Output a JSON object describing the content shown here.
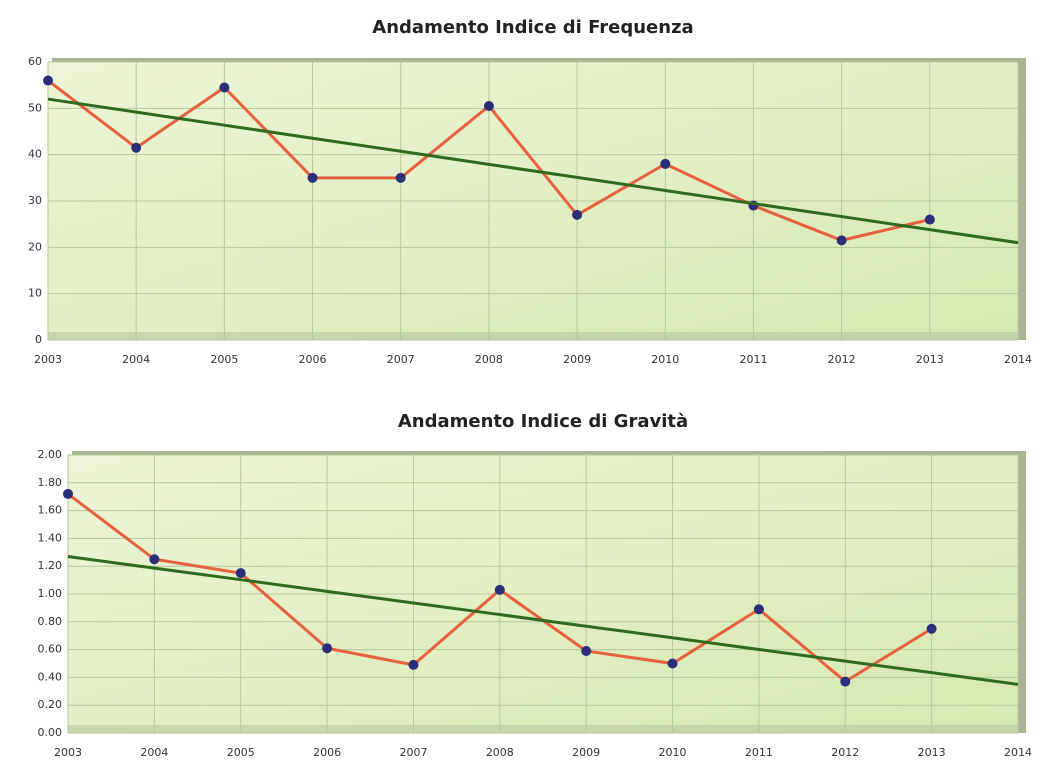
{
  "chart_data": [
    {
      "type": "line",
      "title": "Andamento Indice di Frequenza",
      "x": [
        2003,
        2004,
        2005,
        2006,
        2007,
        2008,
        2009,
        2010,
        2011,
        2012,
        2013,
        2014
      ],
      "series": [
        {
          "color": "#e8603c",
          "marker_color": "#2b2f7a",
          "values": [
            56,
            41.5,
            54.5,
            35,
            35,
            50.5,
            27,
            38,
            29,
            21.5,
            26,
            null
          ]
        },
        {
          "color": "#2f6a1e",
          "values": [
            52,
            49.18,
            46.36,
            43.55,
            40.73,
            37.91,
            35.09,
            32.27,
            29.45,
            26.64,
            23.82,
            21
          ]
        }
      ],
      "xlim": [
        2003,
        2014
      ],
      "xticks": [
        2003,
        2004,
        2005,
        2006,
        2007,
        2008,
        2009,
        2010,
        2011,
        2012,
        2013,
        2014
      ],
      "ylim": [
        0,
        60
      ],
      "yticks": [
        0,
        10,
        20,
        30,
        40,
        50,
        60
      ],
      "grid": true
    },
    {
      "type": "line",
      "title": "Andamento Indice di Gravità",
      "x": [
        2003,
        2004,
        2005,
        2006,
        2007,
        2008,
        2009,
        2010,
        2011,
        2012,
        2013,
        2014
      ],
      "series": [
        {
          "color": "#e8603c",
          "marker_color": "#2b2f7a",
          "values": [
            1.72,
            1.25,
            1.15,
            0.61,
            0.49,
            1.03,
            0.59,
            0.5,
            0.89,
            0.37,
            0.75,
            null
          ]
        },
        {
          "color": "#2f6a1e",
          "values": [
            1.27,
            1.186,
            1.103,
            1.019,
            0.935,
            0.852,
            0.768,
            0.685,
            0.601,
            0.517,
            0.434,
            0.35
          ]
        }
      ],
      "xlim": [
        2003,
        2014
      ],
      "xticks": [
        2003,
        2004,
        2005,
        2006,
        2007,
        2008,
        2009,
        2010,
        2011,
        2012,
        2013,
        2014
      ],
      "ylim": [
        0,
        2
      ],
      "yticks": [
        {
          "value": 0,
          "label": "0.00"
        },
        {
          "value": 0.2,
          "label": "0.20"
        },
        {
          "value": 0.4,
          "label": "0.40"
        },
        {
          "value": 0.6,
          "label": "0.60"
        },
        {
          "value": 0.8,
          "label": "0.80"
        },
        {
          "value": 1,
          "label": "1.00"
        },
        {
          "value": 1.2,
          "label": "1.20"
        },
        {
          "value": 1.4,
          "label": "1.40"
        },
        {
          "value": 1.6,
          "label": "1.60"
        },
        {
          "value": 1.8,
          "label": "1.80"
        },
        {
          "value": 2,
          "label": "2.00"
        }
      ],
      "grid": true
    }
  ]
}
